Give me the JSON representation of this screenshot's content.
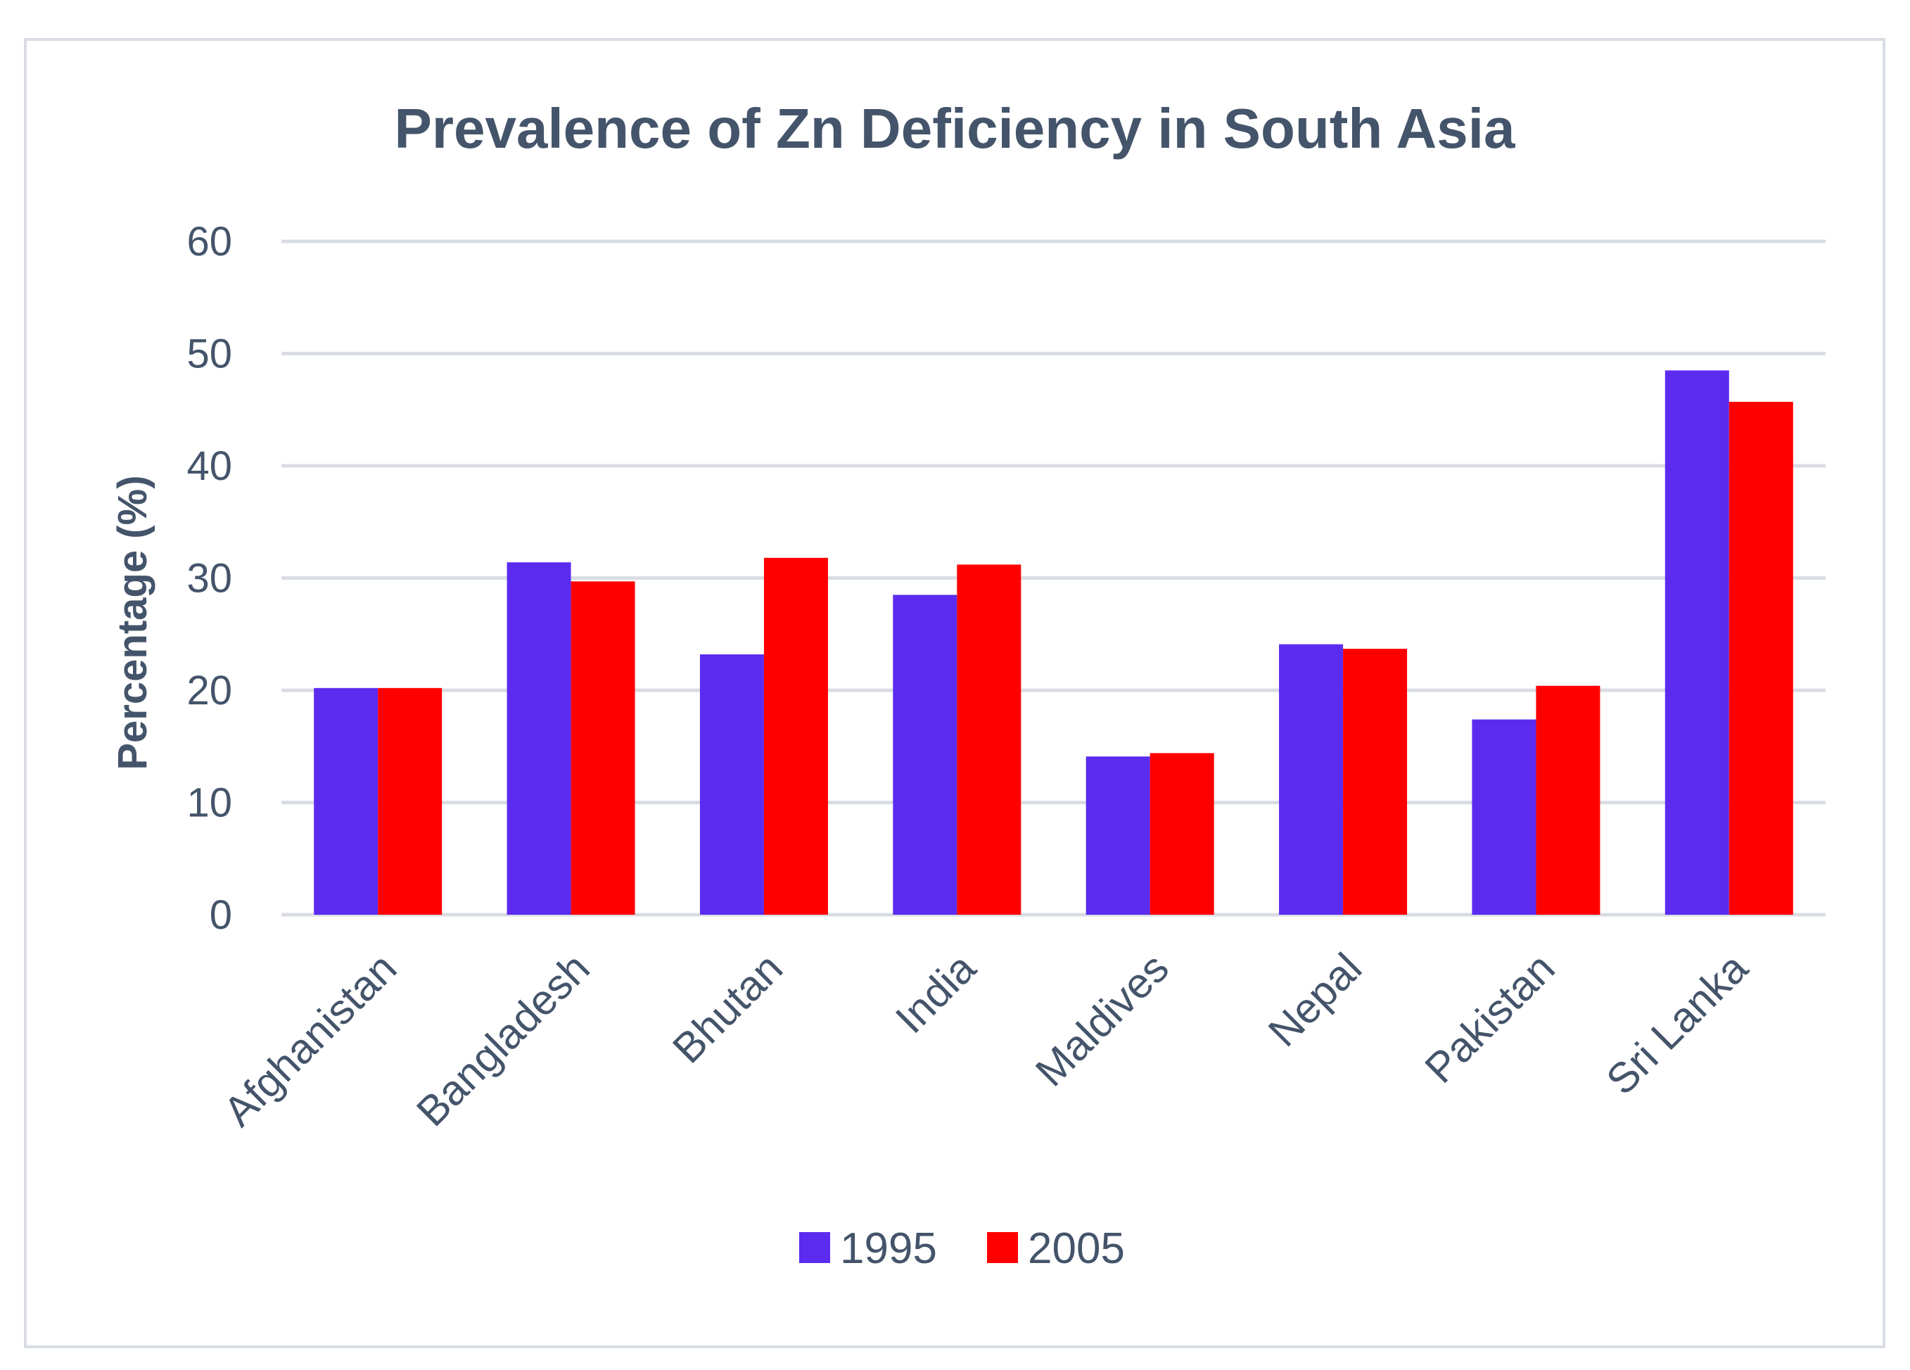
{
  "chart_data": {
    "type": "bar",
    "title": "Prevalence of Zn Deficiency in South Asia",
    "xlabel": "",
    "ylabel": "Percentage (%)",
    "ylim": [
      0,
      60
    ],
    "yticks": [
      "0",
      "10",
      "20",
      "30",
      "40",
      "50",
      "60"
    ],
    "grid": true,
    "legend_position": "bottom",
    "categories": [
      "Afghanistan",
      "Bangladesh",
      "Bhutan",
      "India",
      "Maldives",
      "Nepal",
      "Pakistan",
      "Sri Lanka"
    ],
    "series": [
      {
        "name": "1995",
        "color": "#5b2cf0",
        "values": [
          20.2,
          31.4,
          23.2,
          28.5,
          14.1,
          24.1,
          17.4,
          48.5
        ]
      },
      {
        "name": "2005",
        "color": "#ff0000",
        "values": [
          20.2,
          29.7,
          31.8,
          31.2,
          14.4,
          23.7,
          20.4,
          45.7
        ]
      }
    ]
  }
}
